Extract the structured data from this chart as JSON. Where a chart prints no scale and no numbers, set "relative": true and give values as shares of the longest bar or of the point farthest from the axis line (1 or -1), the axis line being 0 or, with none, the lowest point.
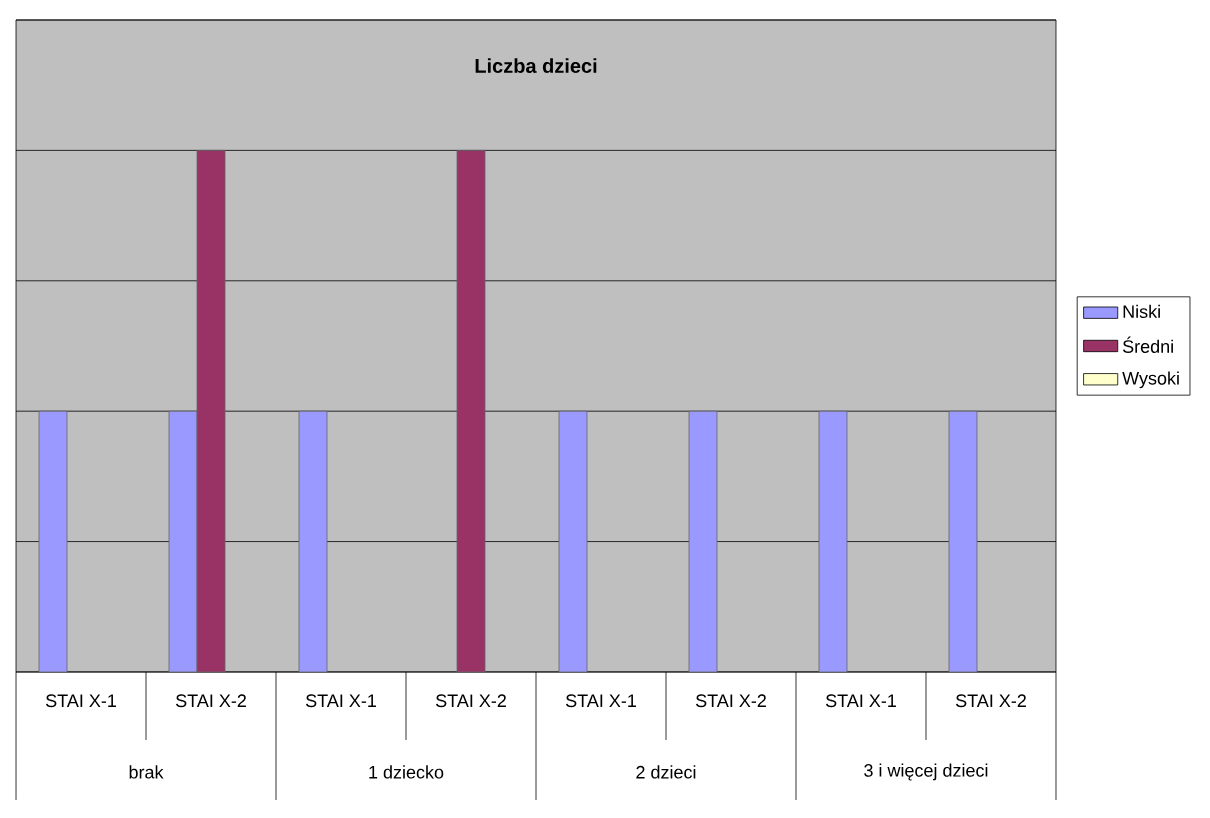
{
  "chart_data": {
    "type": "bar",
    "title": "Liczba dzieci",
    "relative": true,
    "legend": "right",
    "grid": "y",
    "categories": [
      "STAI X-1",
      "STAI X-2",
      "STAI X-1",
      "STAI X-2",
      "STAI X-1",
      "STAI X-2",
      "STAI X-1",
      "STAI X-2"
    ],
    "annotations": [
      "brak",
      "1 dziecko",
      "2 dzieci",
      "3 i więcej dzieci"
    ],
    "series": [
      {
        "name": "Niski",
        "color": "#9999ff",
        "values": [
          0.5,
          0.5,
          0.5,
          null,
          0.5,
          0.5,
          0.5,
          0.5
        ]
      },
      {
        "name": "Średni",
        "color": "#993366",
        "values": [
          null,
          1,
          null,
          1,
          null,
          null,
          null,
          null
        ]
      },
      {
        "name": "Wysoki",
        "color": "#ffffcc",
        "values": [
          null,
          null,
          null,
          null,
          null,
          null,
          null,
          null
        ]
      }
    ]
  }
}
